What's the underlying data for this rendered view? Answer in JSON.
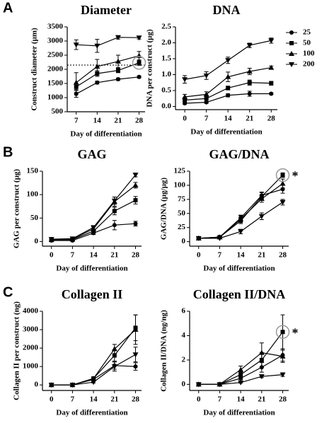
{
  "chart_data": [
    {
      "type": "line",
      "panel_label": "A",
      "title": "Diameter",
      "xlabel": "Day of differentiation",
      "ylabel": "Construct diameter (µm)",
      "x": [
        7,
        14,
        21,
        28
      ],
      "xlim": [
        4,
        30
      ],
      "xticks": [
        7,
        14,
        21,
        28
      ],
      "ylim": [
        500,
        3500
      ],
      "yticks": [
        500,
        1000,
        1500,
        2000,
        2500,
        3000,
        3500
      ],
      "reference_line": 2150,
      "highlight": [
        1,
        3
      ],
      "series": [
        {
          "name": "25",
          "marker": "circle",
          "color": "#000000",
          "values": [
            1130,
            1530,
            1650,
            1730
          ],
          "errors": [
            120,
            50,
            40,
            40
          ]
        },
        {
          "name": "50",
          "marker": "square",
          "color": "#000000",
          "values": [
            1380,
            1850,
            1960,
            2230
          ],
          "errors": [
            100,
            100,
            80,
            90
          ]
        },
        {
          "name": "100",
          "marker": "triangle",
          "color": "#000000",
          "values": [
            1530,
            2100,
            2280,
            2480
          ],
          "errors": [
            350,
            250,
            220,
            150
          ]
        },
        {
          "name": "200",
          "marker": "triangle-down",
          "color": "#000000",
          "values": [
            2870,
            2830,
            3130,
            3120
          ],
          "errors": [
            170,
            230,
            60,
            50
          ]
        }
      ]
    },
    {
      "type": "line",
      "title": "DNA",
      "xlabel": "Day of differentiation",
      "ylabel": "DNA per construct (µg)",
      "legend": "right",
      "x": [
        0,
        7,
        14,
        21,
        28
      ],
      "xlim": [
        -3,
        30
      ],
      "xticks": [
        0,
        7,
        14,
        21,
        28
      ],
      "ylim": [
        -0.1,
        2.5
      ],
      "yticks": [
        {
          "value": 0,
          "label": "0.0"
        },
        0.5,
        {
          "value": 1,
          "label": "1.0"
        },
        1.5,
        {
          "value": 2,
          "label": "2.0"
        },
        2.5
      ],
      "series": [
        {
          "name": "25",
          "marker": "circle",
          "color": "#000000",
          "values": [
            0.1,
            0.13,
            0.35,
            0.4,
            0.4
          ],
          "errors": [
            0.03,
            0.03,
            0.05,
            0.08,
            0.03
          ]
        },
        {
          "name": "50",
          "marker": "square",
          "color": "#000000",
          "values": [
            0.2,
            0.25,
            0.58,
            0.75,
            0.73
          ],
          "errors": [
            0.05,
            0.05,
            0.06,
            0.08,
            0.06
          ]
        },
        {
          "name": "100",
          "marker": "triangle",
          "color": "#000000",
          "values": [
            0.3,
            0.38,
            0.93,
            1.1,
            1.22
          ],
          "errors": [
            0.08,
            0.08,
            0.15,
            0.1,
            0.05
          ]
        },
        {
          "name": "200",
          "marker": "triangle-down",
          "color": "#000000",
          "values": [
            0.85,
            0.97,
            1.45,
            1.92,
            2.07
          ],
          "errors": [
            0.12,
            0.12,
            0.1,
            0.07,
            0.08
          ]
        }
      ]
    },
    {
      "type": "line",
      "panel_label": "B",
      "title": "GAG",
      "xlabel": "Day of differentiation",
      "ylabel": "GAG per construct (µg)",
      "x": [
        0,
        7,
        14,
        21,
        28
      ],
      "xlim": [
        -3,
        30
      ],
      "xticks": [
        0,
        7,
        14,
        21,
        28
      ],
      "ylim": [
        -10,
        150
      ],
      "yticks": [
        0,
        50,
        100,
        150
      ],
      "series": [
        {
          "name": "25",
          "marker": "circle",
          "color": "#000000",
          "values": [
            2,
            2,
            18,
            35,
            38
          ],
          "errors": [
            1,
            1,
            3,
            10,
            5
          ]
        },
        {
          "name": "50",
          "marker": "square",
          "color": "#000000",
          "values": [
            3,
            4,
            22,
            65,
            88
          ],
          "errors": [
            1,
            1,
            4,
            8,
            8
          ]
        },
        {
          "name": "100",
          "marker": "triangle",
          "color": "#000000",
          "values": [
            4,
            5,
            27,
            85,
            120
          ],
          "errors": [
            1,
            1,
            4,
            10,
            6
          ]
        },
        {
          "name": "200",
          "marker": "triangle-down",
          "color": "#000000",
          "values": [
            5,
            6,
            30,
            87,
            142
          ],
          "errors": [
            1,
            1,
            4,
            8,
            4
          ]
        }
      ]
    },
    {
      "type": "line",
      "title": "GAG/DNA",
      "xlabel": "Day of differentiation",
      "ylabel": "GAG/DNA (µg/µg)",
      "annotation": "*",
      "highlight": [
        1,
        4
      ],
      "x": [
        0,
        7,
        14,
        21,
        28
      ],
      "xlim": [
        -3,
        30
      ],
      "xticks": [
        0,
        7,
        14,
        21,
        28
      ],
      "ylim": [
        -8,
        125
      ],
      "yticks": [
        0,
        25,
        50,
        75,
        100,
        125
      ],
      "series": [
        {
          "name": "25",
          "marker": "circle",
          "color": "#000000",
          "values": [
            6,
            8,
            42,
            82,
            93
          ],
          "errors": [
            1,
            1,
            5,
            6,
            7
          ]
        },
        {
          "name": "50",
          "marker": "square",
          "color": "#000000",
          "values": [
            6,
            8,
            37,
            80,
            118
          ],
          "errors": [
            1,
            1,
            5,
            7,
            4
          ]
        },
        {
          "name": "100",
          "marker": "triangle",
          "color": "#000000",
          "values": [
            6,
            8,
            40,
            76,
            103
          ],
          "errors": [
            1,
            1,
            6,
            6,
            8
          ]
        },
        {
          "name": "200",
          "marker": "triangle-down",
          "color": "#000000",
          "values": [
            6,
            6,
            18,
            45,
            70
          ],
          "errors": [
            1,
            1,
            4,
            6,
            5
          ]
        }
      ]
    },
    {
      "type": "line",
      "panel_label": "C",
      "title": "Collagen II",
      "xlabel": "Day of differentiation",
      "ylabel": "Collagen II per construct (ng)",
      "x": [
        0,
        7,
        14,
        21,
        28
      ],
      "xlim": [
        -3,
        30
      ],
      "xticks": [
        0,
        7,
        14,
        21,
        28
      ],
      "ylim": [
        -300,
        4000
      ],
      "yticks": [
        0,
        1000,
        2000,
        3000,
        4000
      ],
      "series": [
        {
          "name": "25",
          "marker": "circle",
          "color": "#000000",
          "values": [
            0,
            0,
            300,
            1050,
            1000
          ],
          "errors": [
            0,
            0,
            50,
            200,
            200
          ]
        },
        {
          "name": "50",
          "marker": "square",
          "color": "#000000",
          "values": [
            0,
            0,
            350,
            1600,
            3100
          ],
          "errors": [
            0,
            0,
            60,
            300,
            700
          ]
        },
        {
          "name": "100",
          "marker": "triangle",
          "color": "#000000",
          "values": [
            0,
            0,
            350,
            1950,
            3000
          ],
          "errors": [
            0,
            0,
            60,
            250,
            800
          ]
        },
        {
          "name": "200",
          "marker": "triangle-down",
          "color": "#000000",
          "values": [
            0,
            0,
            150,
            1000,
            1650
          ],
          "errors": [
            0,
            0,
            40,
            250,
            400
          ]
        }
      ]
    },
    {
      "type": "line",
      "title": "Collagen II/DNA",
      "xlabel": "Day of differentiation",
      "ylabel": "Collagen II/DNA (ng/ng)",
      "annotation": "*",
      "highlight": [
        1,
        4
      ],
      "x": [
        0,
        7,
        14,
        21,
        28
      ],
      "xlim": [
        -3,
        30
      ],
      "xticks": [
        0,
        7,
        14,
        21,
        28
      ],
      "ylim": [
        -0.5,
        6
      ],
      "yticks": [
        0,
        2,
        4,
        6
      ],
      "series": [
        {
          "name": "25",
          "marker": "circle",
          "color": "#000000",
          "values": [
            0,
            0,
            0.5,
            1.4,
            2.4
          ],
          "errors": [
            0,
            0,
            0.1,
            0.4,
            0.5
          ]
        },
        {
          "name": "50",
          "marker": "square",
          "color": "#000000",
          "values": [
            0,
            0,
            0.8,
            2.0,
            4.3
          ],
          "errors": [
            0,
            0,
            0.2,
            0.6,
            1.4
          ]
        },
        {
          "name": "100",
          "marker": "triangle",
          "color": "#000000",
          "values": [
            0,
            0,
            1.2,
            2.6,
            2.3
          ],
          "errors": [
            0,
            0,
            0.3,
            0.8,
            0.5
          ]
        },
        {
          "name": "200",
          "marker": "triangle-down",
          "color": "#000000",
          "values": [
            0,
            0,
            0.15,
            0.65,
            0.8
          ],
          "errors": [
            0,
            0,
            0.05,
            0.1,
            0.15
          ]
        }
      ]
    }
  ]
}
